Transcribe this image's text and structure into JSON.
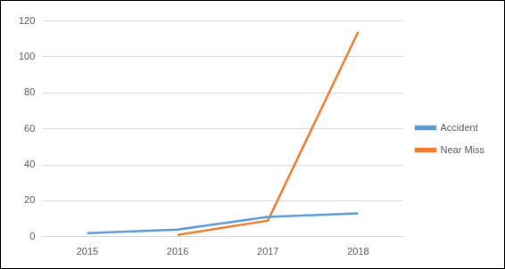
{
  "chart_data": {
    "type": "line",
    "categories": [
      "2015",
      "2016",
      "2017",
      "2018"
    ],
    "series": [
      {
        "name": "Accident",
        "color": "#5b9bd5",
        "values": [
          2,
          4,
          11,
          13
        ]
      },
      {
        "name": "Near Miss",
        "color": "#ed7d31",
        "values": [
          null,
          1,
          9,
          114
        ]
      }
    ],
    "ylim": [
      0,
      120
    ],
    "yticks": [
      0,
      20,
      40,
      60,
      80,
      100,
      120
    ],
    "grid": true,
    "legend": "right"
  }
}
